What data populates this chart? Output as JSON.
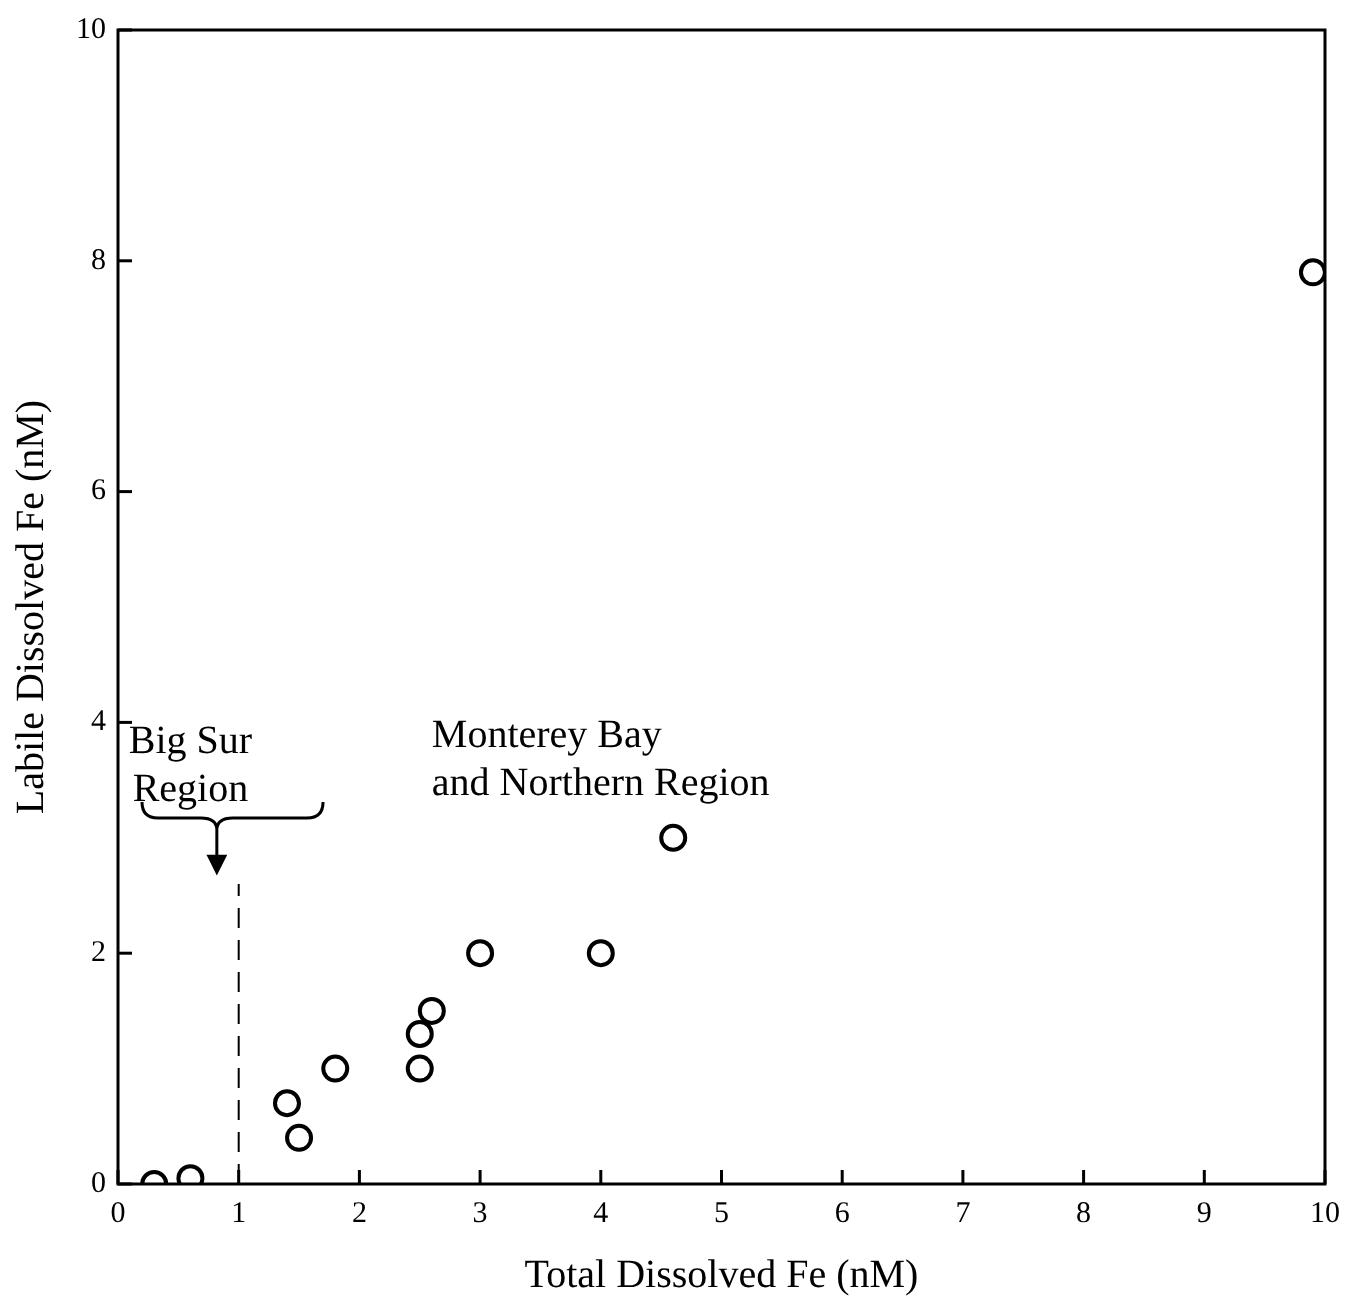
{
  "chart_data": {
    "type": "scatter",
    "xlabel": "Total Dissolved Fe (nM)",
    "ylabel": "Labile Dissolved Fe (nM)",
    "x": [
      0.3,
      0.6,
      1.4,
      1.5,
      1.8,
      2.5,
      2.5,
      2.6,
      3.0,
      4.0,
      4.6,
      9.9
    ],
    "values": [
      0,
      0.05,
      0.7,
      0.4,
      1.0,
      1.0,
      1.3,
      1.5,
      2.0,
      2.0,
      3.0,
      7.9
    ],
    "color": "#000000",
    "marker": "circle",
    "grid": false,
    "legend": false,
    "xlim": [
      0,
      10
    ],
    "xticks": [
      0,
      1,
      2,
      3,
      4,
      5,
      6,
      7,
      8,
      9,
      10
    ],
    "ylim": [
      0,
      10
    ],
    "yticks": [
      0,
      2,
      4,
      6,
      8,
      10
    ],
    "ref_lines": [
      {
        "axis": "x",
        "value": 1,
        "line_style": "dashed",
        "color": "#000000"
      }
    ],
    "annotations": [
      "Big Sur\nRegion",
      "Monterey Bay\nand Northern Region"
    ]
  }
}
